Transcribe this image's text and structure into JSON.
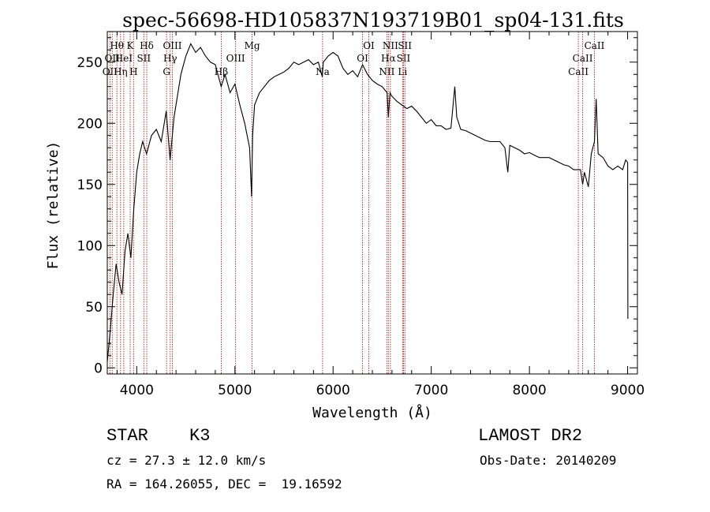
{
  "chart_data": {
    "type": "line",
    "title": "spec-56698-HD105837N193719B01_sp04-131.fits",
    "xlabel": "Wavelength (Å)",
    "ylabel": "Flux (relative)",
    "xlim": [
      3700,
      9100
    ],
    "ylim": [
      -5,
      275
    ],
    "xticks": [
      4000,
      5000,
      6000,
      7000,
      8000,
      9000
    ],
    "yticks": [
      0,
      50,
      100,
      150,
      200,
      250
    ],
    "grid": false,
    "line_color": "#000000",
    "marker_color": "#b22222",
    "spectrum": {
      "x": [
        3700,
        3730,
        3760,
        3790,
        3820,
        3850,
        3880,
        3910,
        3940,
        3970,
        4000,
        4030,
        4060,
        4100,
        4150,
        4200,
        4250,
        4300,
        4340,
        4380,
        4420,
        4450,
        4500,
        4550,
        4600,
        4650,
        4700,
        4750,
        4800,
        4860,
        4900,
        4950,
        5000,
        5050,
        5100,
        5150,
        5170,
        5180,
        5200,
        5250,
        5300,
        5350,
        5400,
        5450,
        5500,
        5550,
        5600,
        5650,
        5700,
        5750,
        5800,
        5850,
        5890,
        5900,
        5950,
        6000,
        6050,
        6100,
        6150,
        6200,
        6250,
        6300,
        6350,
        6400,
        6450,
        6500,
        6550,
        6563,
        6580,
        6600,
        6650,
        6700,
        6750,
        6800,
        6850,
        6900,
        6950,
        7000,
        7050,
        7100,
        7150,
        7200,
        7240,
        7260,
        7300,
        7350,
        7400,
        7450,
        7500,
        7550,
        7600,
        7650,
        7700,
        7750,
        7780,
        7800,
        7850,
        7900,
        7950,
        8000,
        8050,
        8100,
        8150,
        8200,
        8250,
        8300,
        8350,
        8400,
        8450,
        8498,
        8520,
        8542,
        8560,
        8600,
        8630,
        8662,
        8680,
        8700,
        8750,
        8800,
        8850,
        8900,
        8950,
        8980,
        9000,
        9003
      ],
      "y": [
        5,
        30,
        60,
        85,
        70,
        60,
        95,
        110,
        90,
        130,
        160,
        175,
        185,
        175,
        190,
        195,
        185,
        210,
        170,
        205,
        225,
        240,
        255,
        265,
        258,
        262,
        255,
        250,
        248,
        230,
        240,
        225,
        232,
        215,
        200,
        180,
        140,
        190,
        215,
        225,
        230,
        235,
        238,
        240,
        242,
        245,
        250,
        248,
        250,
        252,
        248,
        250,
        238,
        250,
        255,
        258,
        255,
        245,
        240,
        243,
        238,
        248,
        240,
        235,
        232,
        230,
        225,
        205,
        225,
        222,
        218,
        215,
        212,
        214,
        210,
        205,
        200,
        203,
        198,
        198,
        195,
        196,
        230,
        205,
        195,
        194,
        192,
        190,
        188,
        186,
        185,
        185,
        185,
        180,
        160,
        182,
        180,
        178,
        175,
        176,
        174,
        172,
        172,
        172,
        170,
        168,
        166,
        165,
        162,
        162,
        162,
        150,
        160,
        148,
        175,
        185,
        220,
        175,
        172,
        165,
        162,
        165,
        162,
        170,
        168,
        40
      ]
    },
    "line_markers": [
      {
        "wavelength": 3727,
        "label": "OII",
        "row": 3
      },
      {
        "wavelength": 3750,
        "label": "OII",
        "row": 2
      },
      {
        "wavelength": 3798,
        "label": "Hθ",
        "row": 1
      },
      {
        "wavelength": 3835,
        "label": "Hη",
        "row": 3
      },
      {
        "wavelength": 3868,
        "label": "HeI",
        "row": 2
      },
      {
        "wavelength": 3933,
        "label": "K",
        "row": 1
      },
      {
        "wavelength": 3968,
        "label": "H",
        "row": 3
      },
      {
        "wavelength": 4072,
        "label": "SII",
        "row": 2
      },
      {
        "wavelength": 4102,
        "label": "Hδ",
        "row": 1
      },
      {
        "wavelength": 4304,
        "label": "G",
        "row": 3
      },
      {
        "wavelength": 4341,
        "label": "Hγ",
        "row": 2
      },
      {
        "wavelength": 4363,
        "label": "OIII",
        "row": 1
      },
      {
        "wavelength": 4861,
        "label": "Hβ",
        "row": 3
      },
      {
        "wavelength": 5007,
        "label": "OIII",
        "row": 2
      },
      {
        "wavelength": 5175,
        "label": "Mg",
        "row": 1
      },
      {
        "wavelength": 5893,
        "label": "Na",
        "row": 3
      },
      {
        "wavelength": 6300,
        "label": "OI",
        "row": 2
      },
      {
        "wavelength": 6364,
        "label": "OI",
        "row": 1
      },
      {
        "wavelength": 6548,
        "label": "NII",
        "row": 3
      },
      {
        "wavelength": 6563,
        "label": "Hα",
        "row": 2
      },
      {
        "wavelength": 6584,
        "label": "NII",
        "row": 1
      },
      {
        "wavelength": 6708,
        "label": "Li",
        "row": 3
      },
      {
        "wavelength": 6717,
        "label": "SII",
        "row": 2
      },
      {
        "wavelength": 6731,
        "label": "SII",
        "row": 1
      },
      {
        "wavelength": 8498,
        "label": "CaII",
        "row": 3
      },
      {
        "wavelength": 8542,
        "label": "CaII",
        "row": 2
      },
      {
        "wavelength": 8662,
        "label": "CaII",
        "row": 1
      }
    ]
  },
  "info": {
    "object_class": "STAR",
    "subclass": "K3",
    "survey": "LAMOST DR2",
    "redshift": "cz = 27.3 ± 12.0 km/s",
    "obs_date": "Obs-Date: 20140209",
    "coords": "RA = 164.26055, DEC =  19.16592"
  }
}
